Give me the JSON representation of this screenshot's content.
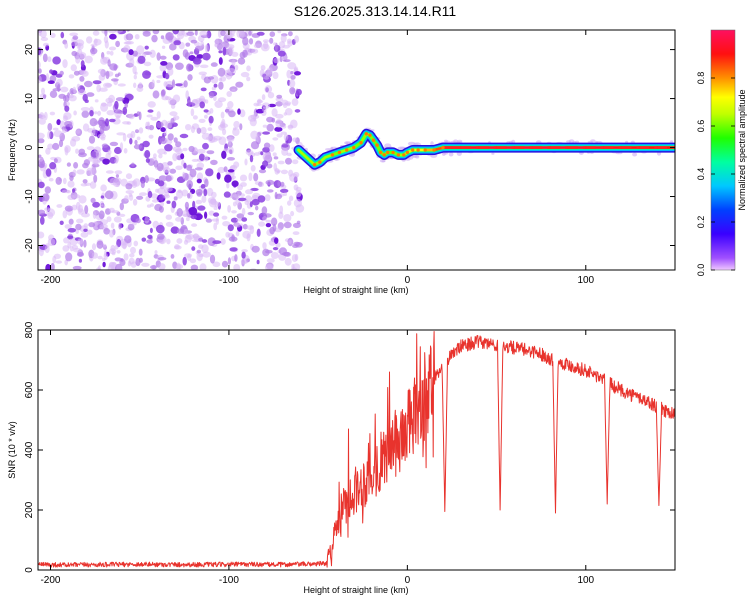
{
  "figure_title": "S126.2025.313.14.14.R11",
  "chart_data": [
    {
      "type": "heatmap",
      "title": "S126.2025.313.14.14.R11",
      "xlabel": "Height of straight line (km)",
      "ylabel": "Frequency (Hz)",
      "xlim": [
        -207,
        150
      ],
      "ylim": [
        -25,
        24
      ],
      "x_ticks": [
        -200,
        -100,
        0,
        100
      ],
      "y_ticks": [
        -20,
        -10,
        0,
        10,
        20
      ],
      "colorbar": {
        "label": "Normalized spectral amplitude",
        "range": [
          0,
          1
        ],
        "ticks": [
          0.0,
          0.2,
          0.4,
          0.6,
          0.8
        ]
      },
      "noise_region": {
        "x_from": -207,
        "x_to": -60,
        "amplitude_range": [
          0.02,
          0.2
        ]
      },
      "signal_trace": {
        "x": [
          -61,
          -55,
          -52,
          -49,
          -46,
          -42,
          -38,
          -34,
          -30,
          -26,
          -23,
          -21,
          -19,
          -17,
          -15,
          -13,
          -11,
          -8,
          -5,
          -2,
          0,
          3,
          6,
          10,
          15,
          20,
          25,
          30,
          40,
          50,
          60,
          70,
          80,
          90,
          100,
          110,
          120,
          130,
          140,
          150
        ],
        "frequency_hz": [
          -0.5,
          -2.5,
          -3.5,
          -3,
          -2,
          -1.5,
          -1,
          -0.5,
          0,
          1,
          2.8,
          2.5,
          1.5,
          0.5,
          -1,
          -1.5,
          -1,
          -1,
          -1.5,
          -1.5,
          -1,
          -0.5,
          -0.5,
          -0.5,
          -0.5,
          0,
          0,
          0,
          0,
          0,
          0,
          0,
          0,
          0,
          0,
          0,
          0,
          0,
          0,
          0
        ],
        "amplitude": [
          0.15,
          0.5,
          0.65,
          0.6,
          0.55,
          0.6,
          0.62,
          0.65,
          0.62,
          0.6,
          0.65,
          0.62,
          0.6,
          0.6,
          0.6,
          0.62,
          0.6,
          0.6,
          0.62,
          0.65,
          0.65,
          0.7,
          0.7,
          0.75,
          0.8,
          0.9,
          0.92,
          0.93,
          0.94,
          0.95,
          0.95,
          0.95,
          0.95,
          0.95,
          0.95,
          0.93,
          0.92,
          0.9,
          0.9,
          0.9
        ]
      }
    },
    {
      "type": "line",
      "xlabel": "Height of straight line (km)",
      "ylabel": "SNR (10 * v/v)",
      "xlim": [
        -207,
        150
      ],
      "ylim": [
        0,
        800
      ],
      "x_ticks": [
        -200,
        -100,
        0,
        100
      ],
      "y_ticks": [
        0,
        200,
        400,
        600,
        800
      ],
      "color": "#e8332d",
      "series": [
        {
          "name": "SNR",
          "x": [
            -207,
            -190,
            -170,
            -150,
            -130,
            -110,
            -90,
            -70,
            -55,
            -45,
            -43,
            -40,
            -35,
            -30,
            -25,
            -20,
            -15,
            -10,
            -5,
            0,
            5,
            10,
            15,
            20,
            25,
            30,
            35,
            40,
            45,
            50,
            55,
            60,
            65,
            70,
            75,
            80,
            85,
            90,
            95,
            100,
            105,
            110,
            115,
            120,
            125,
            130,
            135,
            140,
            145,
            150
          ],
          "y": [
            18,
            17,
            18,
            19,
            18,
            18,
            19,
            18,
            20,
            22,
            60,
            150,
            220,
            260,
            290,
            320,
            360,
            400,
            430,
            470,
            520,
            580,
            640,
            680,
            720,
            745,
            755,
            760,
            755,
            750,
            745,
            740,
            735,
            730,
            720,
            705,
            695,
            685,
            675,
            665,
            650,
            635,
            615,
            600,
            585,
            575,
            560,
            545,
            530,
            520
          ]
        }
      ],
      "spikes_up": [
        {
          "x": -33,
          "y": 470
        },
        {
          "x": -18,
          "y": 520
        },
        {
          "x": -10,
          "y": 660
        },
        {
          "x": 15,
          "y": 795
        }
      ],
      "dropouts": [
        {
          "x": 21,
          "y": 195
        },
        {
          "x": 52,
          "y": 200
        },
        {
          "x": 83,
          "y": 190
        },
        {
          "x": 112,
          "y": 220
        },
        {
          "x": 141,
          "y": 215
        }
      ]
    }
  ]
}
